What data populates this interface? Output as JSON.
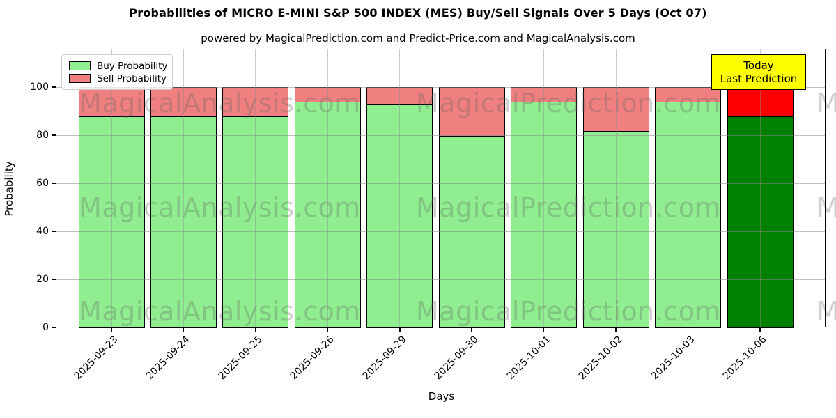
{
  "header": {
    "title": "Probabilities of MICRO E-MINI S&P 500 INDEX (MES) Buy/Sell Signals Over 5 Days (Oct 07)",
    "subtitle": "powered by MagicalPrediction.com and Predict-Price.com and MagicalAnalysis.com"
  },
  "chart_data": {
    "type": "bar",
    "stacked": true,
    "title": "Probabilities of MICRO E-MINI S&P 500 INDEX (MES) Buy/Sell Signals Over 5 Days (Oct 07)",
    "xlabel": "Days",
    "ylabel": "Probability",
    "categories": [
      "2025-09-23",
      "2025-09-24",
      "2025-09-25",
      "2025-09-26",
      "2025-09-29",
      "2025-09-30",
      "2025-10-01",
      "2025-10-02",
      "2025-10-03",
      "2025-10-06"
    ],
    "series": [
      {
        "name": "Buy Probability",
        "color": "#90ee90",
        "today_color": "#008000",
        "values": [
          88,
          88,
          88,
          94,
          93,
          80,
          94,
          82,
          94,
          88
        ]
      },
      {
        "name": "Sell Probability",
        "color": "#f08080",
        "today_color": "#ff0000",
        "values": [
          12,
          12,
          12,
          6,
          7,
          20,
          6,
          18,
          6,
          12
        ]
      }
    ],
    "stack_total": 100,
    "yticks": [
      0,
      20,
      40,
      60,
      80,
      100
    ],
    "ylim": [
      0,
      115.7
    ],
    "dashed_line_y": 110,
    "grid": true,
    "legend_position": "upper left",
    "today_index": 9
  },
  "annotation": {
    "line1": "Today",
    "line2": "Last Prediction",
    "bg_color": "#ffff00"
  },
  "watermarks": {
    "col1": "MagicalAnalysis.com",
    "col2": "MagicalPrediction.com",
    "col3": "M"
  },
  "colors": {
    "bar_edge": "#000000",
    "grid": "#8c8c8c",
    "dashed": "#7f7f7f"
  }
}
